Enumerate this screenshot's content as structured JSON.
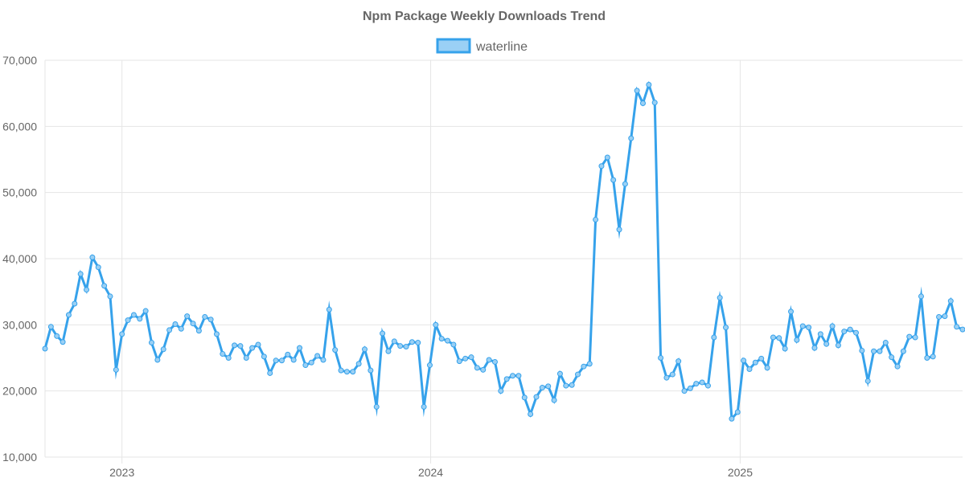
{
  "chart_data": {
    "type": "line",
    "title": "Npm Package Weekly Downloads Trend",
    "xlabel": "",
    "ylabel": "",
    "ylim": [
      10000,
      70000
    ],
    "y_ticks": [
      "70,000",
      "60,000",
      "50,000",
      "40,000",
      "30,000",
      "20,000",
      "10,000"
    ],
    "x_ticks": [
      "2023",
      "2024",
      "2025"
    ],
    "x_start": "2022-10-02",
    "x_interval_days": 7,
    "grid": true,
    "legend_position": "top-center",
    "colors": {
      "line": "#36a2eb",
      "fill": "#9ad0f5",
      "grid": "#e5e5e5",
      "text": "#666666"
    },
    "series": [
      {
        "name": "waterline",
        "values": [
          26400,
          29700,
          28300,
          27400,
          31500,
          33200,
          37700,
          35300,
          40200,
          38700,
          35900,
          34300,
          23200,
          28600,
          30700,
          31500,
          30900,
          32100,
          27300,
          24700,
          26300,
          29200,
          30100,
          29400,
          31300,
          30200,
          29100,
          31200,
          30800,
          28600,
          25600,
          25000,
          26900,
          26800,
          25000,
          26500,
          27000,
          25200,
          22700,
          24600,
          24600,
          25500,
          24700,
          26500,
          23900,
          24300,
          25300,
          24700,
          32300,
          26200,
          23100,
          22900,
          22900,
          24100,
          26300,
          23100,
          17600,
          28700,
          26000,
          27500,
          26800,
          26700,
          27400,
          27300,
          17600,
          23900,
          30000,
          27900,
          27600,
          27000,
          24500,
          24900,
          25100,
          23500,
          23200,
          24700,
          24400,
          20000,
          21800,
          22300,
          22300,
          19000,
          16500,
          19100,
          20500,
          20700,
          18600,
          22600,
          20800,
          20900,
          22500,
          23700,
          24100,
          45900,
          54000,
          55300,
          51900,
          44400,
          51300,
          58200,
          65400,
          63500,
          66300,
          63600,
          25000,
          22000,
          22500,
          24500,
          20000,
          20400,
          21100,
          21300,
          20800,
          28100,
          34100,
          29600,
          15800,
          16800,
          24600,
          23300,
          24300,
          24900,
          23500,
          28100,
          28000,
          26400,
          32000,
          27700,
          29800,
          29600,
          26500,
          28600,
          27100,
          29800,
          26900,
          29000,
          29300,
          28800,
          26100,
          21500,
          26000,
          26000,
          27300,
          25100,
          23700,
          26000,
          28200,
          28100,
          34300,
          25000,
          25200,
          31200,
          31300,
          33600,
          29700,
          29300
        ]
      }
    ]
  }
}
